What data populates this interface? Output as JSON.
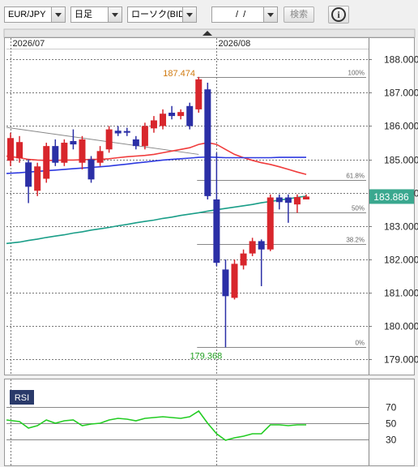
{
  "toolbar": {
    "pair": "EUR/JPY",
    "period": "日足",
    "chart_kind": "ローソク(BID)",
    "date": "  /  /",
    "search": "検索",
    "info": "i"
  },
  "chart_data": [
    {
      "type": "candlestick",
      "categories": [
        "2026/07",
        null,
        null,
        null,
        null,
        null,
        null,
        null,
        null,
        null,
        null,
        null,
        null,
        null,
        null,
        null,
        null,
        null,
        null,
        null,
        null,
        null,
        null,
        "2026/08",
        null,
        null,
        null,
        null,
        null,
        null,
        null,
        null,
        null,
        null
      ],
      "open": [
        184.96,
        185.03,
        184.91,
        184.06,
        184.42,
        185.4,
        184.9,
        185.55,
        184.9,
        185.0,
        184.9,
        185.3,
        185.86,
        185.85,
        185.6,
        185.4,
        185.93,
        186.0,
        186.4,
        186.3,
        186.6,
        186.5,
        187.1,
        183.8,
        181.7,
        180.85,
        181.82,
        182.18,
        182.55,
        182.3,
        183.86,
        183.86,
        183.65,
        183.8
      ],
      "high": [
        185.8,
        185.7,
        185.0,
        184.9,
        185.5,
        185.6,
        185.6,
        185.9,
        185.7,
        185.1,
        185.4,
        186.0,
        186.0,
        185.95,
        185.7,
        186.1,
        186.3,
        186.5,
        186.6,
        186.5,
        186.7,
        187.474,
        187.3,
        185.2,
        182.0,
        182.0,
        182.3,
        182.65,
        182.6,
        183.95,
        183.95,
        183.95,
        183.95,
        183.95
      ],
      "low": [
        184.8,
        184.9,
        183.69,
        183.9,
        184.3,
        184.8,
        184.8,
        185.3,
        184.7,
        184.3,
        184.8,
        185.2,
        185.7,
        185.7,
        185.3,
        185.3,
        185.8,
        185.9,
        186.2,
        186.2,
        185.9,
        186.4,
        183.8,
        181.8,
        179.368,
        180.8,
        181.7,
        182.1,
        181.2,
        182.25,
        183.5,
        183.1,
        183.4,
        183.8
      ],
      "close": [
        185.64,
        185.52,
        184.18,
        184.79,
        185.4,
        184.9,
        185.5,
        185.45,
        185.6,
        184.4,
        185.25,
        185.9,
        185.78,
        185.8,
        185.4,
        186.0,
        186.17,
        186.37,
        186.3,
        186.42,
        186.0,
        187.4,
        183.9,
        181.9,
        180.9,
        181.87,
        182.18,
        182.55,
        182.3,
        183.86,
        183.72,
        183.7,
        183.87,
        183.886
      ],
      "up_color": "#d8262c",
      "down_color": "#2b2fa6",
      "lines": [
        {
          "color": "#f03c3c",
          "values": [
            185.1,
            185.05,
            185.0,
            184.98,
            184.97,
            184.97,
            184.98,
            184.98,
            184.99,
            185.0,
            185.0,
            185.02,
            185.05,
            185.08,
            185.1,
            185.12,
            185.15,
            185.2,
            185.25,
            185.3,
            185.35,
            185.45,
            185.5,
            185.45,
            185.3,
            185.15,
            185.05,
            184.97,
            184.9,
            184.85,
            184.78,
            184.7,
            184.62,
            184.55
          ]
        },
        {
          "color": "#2e3ae0",
          "values": [
            184.58,
            184.6,
            184.62,
            184.64,
            184.66,
            184.68,
            184.7,
            184.72,
            184.74,
            184.76,
            184.78,
            184.8,
            184.83,
            184.86,
            184.89,
            184.92,
            184.95,
            184.98,
            185.0,
            185.02,
            185.04,
            185.06,
            185.07,
            185.06,
            185.05,
            185.05,
            185.05,
            185.05,
            185.05,
            185.05,
            185.06,
            185.06,
            185.06,
            185.06
          ]
        },
        {
          "color": "#1a9e88",
          "values": [
            182.48,
            182.52,
            182.57,
            182.61,
            182.66,
            182.7,
            182.74,
            182.79,
            182.83,
            182.88,
            182.92,
            182.96,
            183.01,
            183.05,
            183.1,
            183.14,
            183.18,
            183.23,
            183.27,
            183.32,
            183.36,
            183.4,
            183.45,
            183.49,
            183.53,
            183.57,
            183.61,
            183.65,
            183.7,
            183.74,
            183.78,
            183.82,
            183.86,
            183.9
          ]
        }
      ],
      "trendline": {
        "x": [
          0,
          21
        ],
        "values": [
          185.96,
          185.15
        ]
      },
      "fib": {
        "labels": [
          "100%",
          "61.8%",
          "50%",
          "38.2%",
          "0%"
        ],
        "values": [
          187.474,
          184.377,
          183.421,
          182.465,
          179.368
        ]
      },
      "ylim": [
        178.55,
        188.32
      ],
      "yticks": [
        {
          "value": 188,
          "label": "188.000"
        },
        {
          "value": 187,
          "label": "187.000"
        },
        {
          "value": 186,
          "label": "186.000"
        },
        {
          "value": 185,
          "label": "185.000"
        },
        {
          "value": 184,
          "label": "184.000"
        },
        {
          "value": 183,
          "label": "183.000"
        },
        {
          "value": 182,
          "label": "182.000"
        },
        {
          "value": 181,
          "label": "181.000"
        },
        {
          "value": 180,
          "label": "180.000"
        },
        {
          "value": 179,
          "label": "179.000"
        }
      ],
      "grid": true
    },
    {
      "type": "line",
      "title": "RSI",
      "color": "#22cc22",
      "values": [
        54,
        52,
        44,
        47,
        54,
        50,
        53,
        54,
        47,
        49,
        50,
        54,
        56,
        55,
        53,
        56,
        57,
        58,
        57,
        56,
        58,
        65,
        50,
        37,
        29,
        32,
        34,
        37,
        37,
        48,
        48,
        47,
        48,
        48
      ],
      "ylim": [
        0,
        96
      ],
      "yticks": [
        70,
        50,
        30
      ]
    }
  ]
}
